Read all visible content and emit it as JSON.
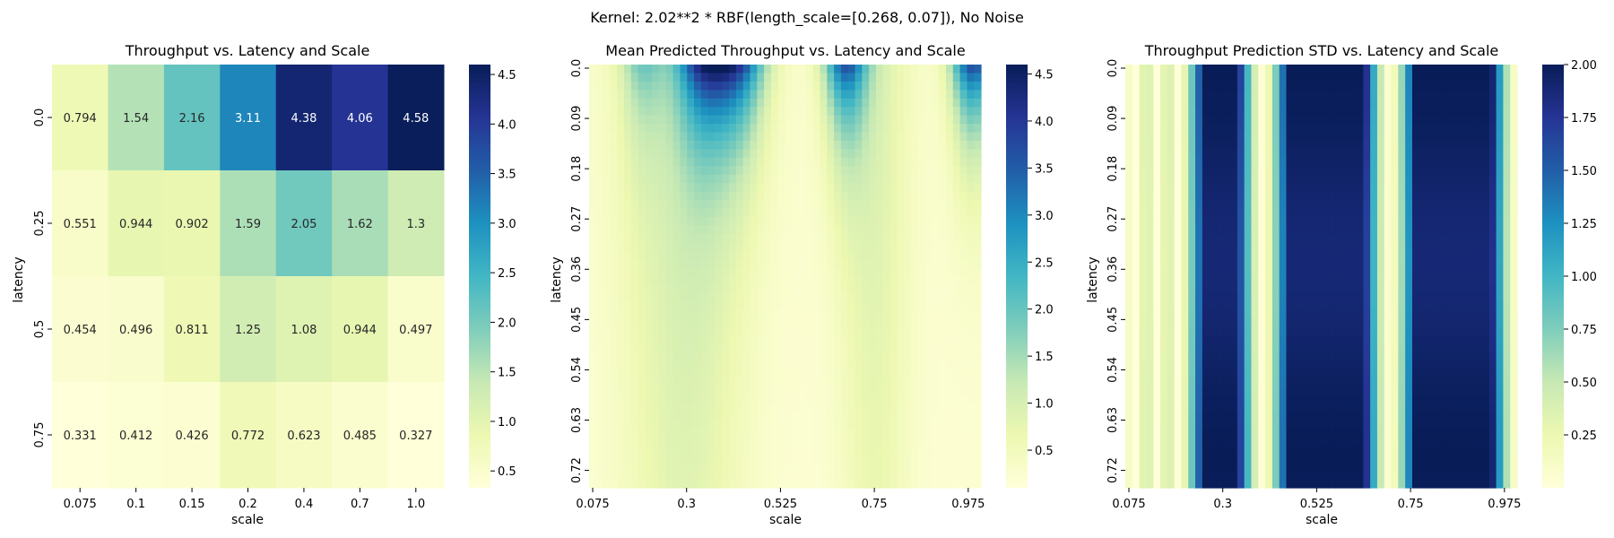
{
  "figure": {
    "suptitle": "Kernel: 2.02**2 * RBF(length_scale=[0.268, 0.07]), No Noise"
  },
  "colormap": {
    "name": "YlGnBu",
    "stops": [
      "#ffffd9",
      "#edf8b1",
      "#c7e9b4",
      "#7fcdbb",
      "#41b6c4",
      "#1d91c0",
      "#225ea8",
      "#253494",
      "#081d58"
    ]
  },
  "chart_data": [
    {
      "type": "heatmap",
      "title": "Throughput vs. Latency and Scale",
      "xlabel": "scale",
      "ylabel": "latency",
      "x_ticks": [
        "0.075",
        "0.1",
        "0.15",
        "0.2",
        "0.4",
        "0.7",
        "1.0"
      ],
      "y_ticks": [
        "0.0",
        "0.25",
        "0.5",
        "0.75"
      ],
      "values": [
        [
          0.794,
          1.54,
          2.16,
          3.11,
          4.38,
          4.06,
          4.58
        ],
        [
          0.551,
          0.944,
          0.902,
          1.59,
          2.05,
          1.62,
          1.3
        ],
        [
          0.454,
          0.496,
          0.811,
          1.25,
          1.08,
          0.944,
          0.497
        ],
        [
          0.331,
          0.412,
          0.426,
          0.772,
          0.623,
          0.485,
          0.327
        ]
      ],
      "annotations": [
        [
          "0.794",
          "1.54",
          "2.16",
          "3.11",
          "4.38",
          "4.06",
          "4.58"
        ],
        [
          "0.551",
          "0.944",
          "0.902",
          "1.59",
          "2.05",
          "1.62",
          "1.3"
        ],
        [
          "0.454",
          "0.496",
          "0.811",
          "1.25",
          "1.08",
          "0.944",
          "0.497"
        ],
        [
          "0.331",
          "0.412",
          "0.426",
          "0.772",
          "0.623",
          "0.485",
          "0.327"
        ]
      ],
      "color_range": [
        0.33,
        4.6
      ],
      "colorbar_ticks": [
        "0.5",
        "1.0",
        "1.5",
        "2.0",
        "2.5",
        "3.0",
        "3.5",
        "4.0",
        "4.5"
      ]
    },
    {
      "type": "heatmap",
      "title": "Mean Predicted Throughput vs. Latency and Scale",
      "xlabel": "scale",
      "ylabel": "latency",
      "x_range": [
        0.075,
        1.0
      ],
      "y_range": [
        0.0,
        0.75
      ],
      "x_ticks": [
        "0.075",
        "0.3",
        "0.525",
        "0.75",
        "0.975"
      ],
      "y_ticks": [
        "0.0",
        "0.09",
        "0.18",
        "0.27",
        "0.36",
        "0.45",
        "0.54",
        "0.63",
        "0.72"
      ],
      "color_range": [
        0.1,
        4.6
      ],
      "colorbar_ticks": [
        "0.5",
        "1.0",
        "1.5",
        "2.0",
        "2.5",
        "3.0",
        "3.5",
        "4.0",
        "4.5"
      ]
    },
    {
      "type": "heatmap",
      "title": "Throughput Prediction STD vs. Latency and Scale",
      "xlabel": "scale",
      "ylabel": "latency",
      "x_range": [
        0.075,
        1.0
      ],
      "y_range": [
        0.0,
        0.75
      ],
      "x_ticks": [
        "0.075",
        "0.3",
        "0.525",
        "0.75",
        "0.975"
      ],
      "y_ticks": [
        "0.0",
        "0.09",
        "0.18",
        "0.27",
        "0.36",
        "0.45",
        "0.54",
        "0.63",
        "0.72"
      ],
      "color_range": [
        0.0,
        2.0
      ],
      "colorbar_ticks": [
        "0.25",
        "0.50",
        "0.75",
        "1.00",
        "1.25",
        "1.50",
        "1.75",
        "2.00"
      ]
    }
  ]
}
